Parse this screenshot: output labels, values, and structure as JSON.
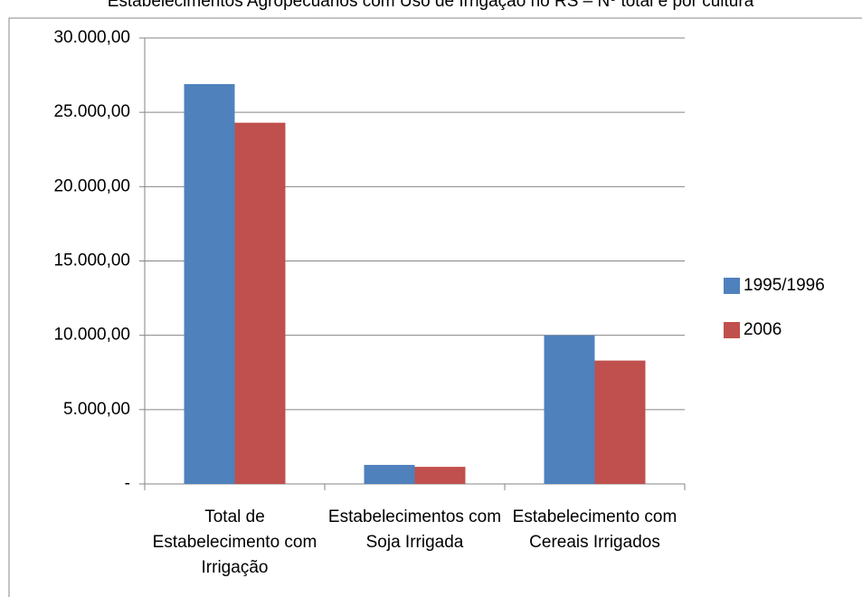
{
  "chart_data": {
    "type": "bar",
    "title": "Estabelecimentos Agropecuários com Uso de Irrigação no RS – Nº total e por cultura",
    "categories": [
      "Total de Estabelecimento com Irrigação",
      "Estabelecimentos com Soja Irrigada",
      "Estabelecimento com Cereais Irrigados"
    ],
    "series": [
      {
        "name": "1995/1996",
        "color": "#4f81bd",
        "values": [
          26900,
          1280,
          10000
        ]
      },
      {
        "name": "2006",
        "color": "#c0504d",
        "values": [
          24300,
          1150,
          8300
        ]
      }
    ],
    "ylim": [
      0,
      30000
    ],
    "yticks": [
      {
        "value": 0,
        "label": "-"
      },
      {
        "value": 5000,
        "label": "5.000,00"
      },
      {
        "value": 10000,
        "label": "10.000,00"
      },
      {
        "value": 15000,
        "label": "15.000,00"
      },
      {
        "value": 20000,
        "label": "20.000,00"
      },
      {
        "value": 25000,
        "label": "25.000,00"
      },
      {
        "value": 30000,
        "label": "30.000,00"
      }
    ],
    "grid": true,
    "legend": "right"
  }
}
